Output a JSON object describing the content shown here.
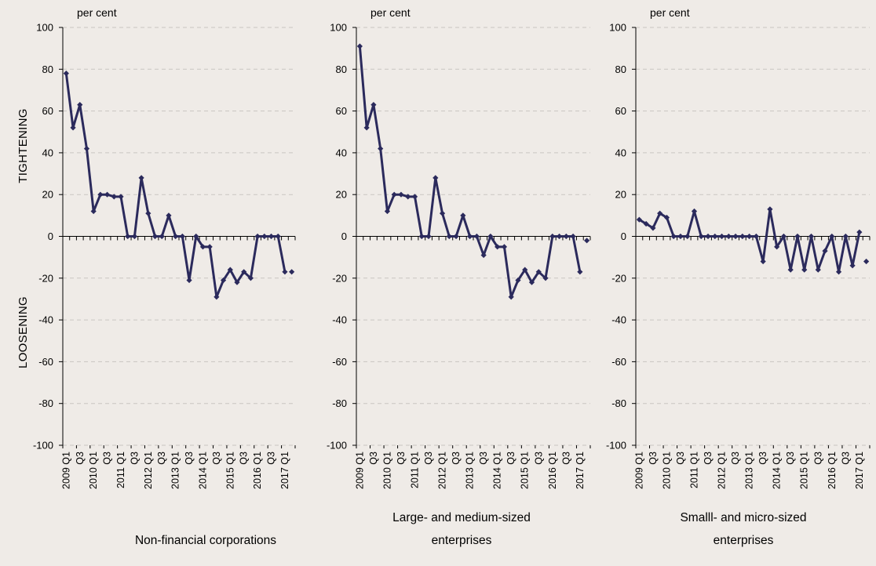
{
  "side_labels": {
    "upper": "TIGHTENING",
    "lower": "LOOSENING"
  },
  "chart_data": [
    {
      "type": "line",
      "caption": "Non-financial corporations",
      "ylabel": "per cent",
      "ylim": [
        -100,
        100
      ],
      "yticks": [
        100,
        80,
        60,
        40,
        20,
        0,
        -20,
        -40,
        -60,
        -80,
        -100
      ],
      "grid": true,
      "x_labels": [
        "2009 Q1",
        "Q3",
        "2010 Q1",
        "Q3",
        "2011 Q1",
        "Q3",
        "2012 Q1",
        "Q3",
        "2013 Q1",
        "Q3",
        "2014 Q1",
        "Q3",
        "2015 Q1",
        "Q3",
        "2016 Q1",
        "Q3",
        "2017 Q1"
      ],
      "series": [
        {
          "color": "#2b2a5c",
          "values": [
            78,
            52,
            63,
            42,
            12,
            20,
            20,
            19,
            19,
            0,
            0,
            28,
            11,
            0,
            0,
            10,
            0,
            0,
            -21,
            0,
            -5,
            -5,
            -29,
            -21,
            -16,
            -22,
            -17,
            -20,
            0,
            0,
            0,
            0,
            -17,
            -17
          ],
          "connected_points": 33
        }
      ]
    },
    {
      "type": "line",
      "caption": "Large- and medium-sized enterprises",
      "ylabel": "per cent",
      "ylim": [
        -100,
        100
      ],
      "yticks": [
        100,
        80,
        60,
        40,
        20,
        0,
        -20,
        -40,
        -60,
        -80,
        -100
      ],
      "grid": true,
      "x_labels": [
        "2009 Q1",
        "Q3",
        "2010 Q1",
        "Q3",
        "2011 Q1",
        "Q3",
        "2012 Q1",
        "Q3",
        "2013 Q1",
        "Q3",
        "2014 Q1",
        "Q3",
        "2015 Q1",
        "Q3",
        "2016 Q1",
        "Q3",
        "2017 Q1"
      ],
      "series": [
        {
          "color": "#2b2a5c",
          "values": [
            91,
            52,
            63,
            42,
            12,
            20,
            20,
            19,
            19,
            0,
            0,
            28,
            11,
            0,
            0,
            10,
            0,
            0,
            -9,
            0,
            -5,
            -5,
            -29,
            -21,
            -16,
            -22,
            -17,
            -20,
            0,
            0,
            0,
            0,
            -17,
            -2
          ],
          "connected_points": 33
        }
      ]
    },
    {
      "type": "line",
      "caption": "Smalll- and micro-sized enterprises",
      "ylabel": "per cent",
      "ylim": [
        -100,
        100
      ],
      "yticks": [
        100,
        80,
        60,
        40,
        20,
        0,
        -20,
        -40,
        -60,
        -80,
        -100
      ],
      "grid": true,
      "x_labels": [
        "2009 Q1",
        "Q3",
        "2010 Q1",
        "Q3",
        "2011 Q1",
        "Q3",
        "2012 Q1",
        "Q3",
        "2013 Q1",
        "Q3",
        "2014 Q1",
        "Q3",
        "2015 Q1",
        "Q3",
        "2016 Q1",
        "Q3",
        "2017 Q1"
      ],
      "series": [
        {
          "color": "#2b2a5c",
          "values": [
            8,
            6,
            4,
            11,
            9,
            0,
            0,
            0,
            12,
            0,
            0,
            0,
            0,
            0,
            0,
            0,
            0,
            0,
            -12,
            13,
            -5,
            0,
            -16,
            0,
            -16,
            0,
            -16,
            -7,
            0,
            -17,
            0,
            -14,
            2,
            -12
          ],
          "connected_points": 33
        }
      ]
    }
  ]
}
